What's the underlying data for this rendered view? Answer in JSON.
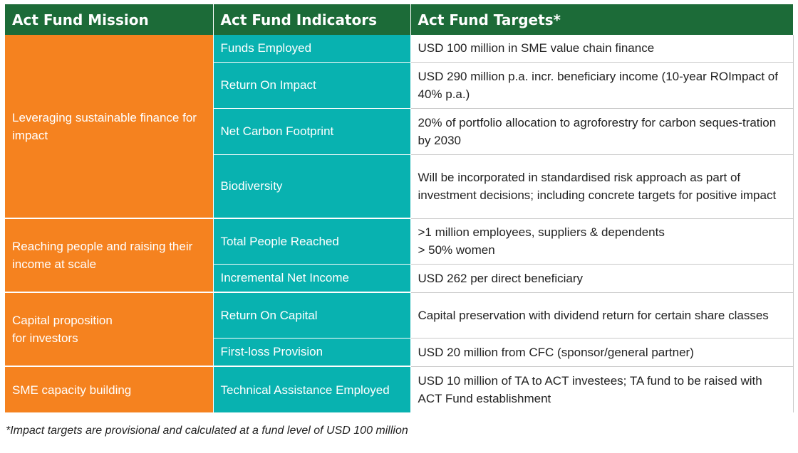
{
  "header": {
    "mission": "Act Fund Mission",
    "indicators": "Act Fund Indicators",
    "targets": "Act Fund Targets*"
  },
  "groups": [
    {
      "mission": "Leveraging sustainable finance for impact",
      "rows": [
        {
          "indicator": "Funds Employed",
          "target": "USD 100 million in SME value chain finance"
        },
        {
          "indicator": "Return On Impact",
          "target": "USD 290 million p.a. incr. beneficiary income (10-year ROImpact of 40% p.a.)"
        },
        {
          "indicator": "Net Carbon Footprint",
          "target": "20% of portfolio allocation to agroforestry for carbon seques-tration by 2030"
        },
        {
          "indicator": "Biodiversity",
          "target": "Will be incorporated in standardised risk approach as part of investment decisions; including concrete targets for positive impact"
        }
      ]
    },
    {
      "mission": "Reaching people and raising their income at scale",
      "rows": [
        {
          "indicator": "Total People Reached",
          "target": ">1 million employees, suppliers & dependents\n> 50% women"
        },
        {
          "indicator": "Incremental Net Income",
          "target": "USD 262 per direct beneficiary"
        }
      ]
    },
    {
      "mission": "Capital proposition\nfor investors",
      "rows": [
        {
          "indicator": "Return On Capital",
          "target": "Capital preservation with dividend return for certain share classes"
        },
        {
          "indicator": "First-loss Provision",
          "target": "USD 20 million from CFC (sponsor/general partner)"
        }
      ]
    },
    {
      "mission": "SME capacity building",
      "rows": [
        {
          "indicator": "Technical Assistance Employed",
          "target": "USD 10 million of TA to ACT investees; TA fund to be raised with ACT Fund establishment"
        }
      ]
    }
  ],
  "footnote": "*Impact targets are provisional and calculated at a fund level of USD 100 million",
  "colors": {
    "header_bg": "#1c6b38",
    "mission_bg": "#f5821f",
    "indicator_bg": "#08b2b0"
  }
}
